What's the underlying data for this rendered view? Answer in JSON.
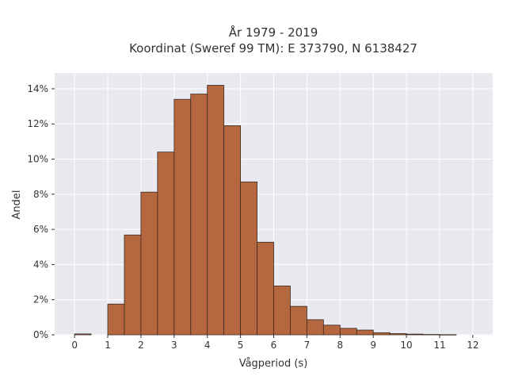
{
  "chart_data": {
    "type": "bar",
    "title_line1": "År 1979 - 2019",
    "title_line2": "Koordinat (Sweref 99 TM): E 373790, N 6138427",
    "xlabel": "Vågperiod (s)",
    "ylabel": "Andel",
    "xlim": [
      -0.6,
      12.6
    ],
    "ylim": [
      0,
      0.149
    ],
    "x_ticks": [
      0,
      1,
      2,
      3,
      4,
      5,
      6,
      7,
      8,
      9,
      10,
      11,
      12
    ],
    "y_ticks": [
      0,
      0.02,
      0.04,
      0.06,
      0.08,
      0.1,
      0.12,
      0.14
    ],
    "y_tick_labels": [
      "0%",
      "2%",
      "4%",
      "6%",
      "8%",
      "10%",
      "12%",
      "14%"
    ],
    "grid": true,
    "bar_color": "#b5683f",
    "bar_edge_color": "#3a2a20",
    "plot_background": "#e9e9f0",
    "bins": [
      {
        "x0": 0.0,
        "x1": 0.5,
        "value": 0.0005
      },
      {
        "x0": 1.0,
        "x1": 1.5,
        "value": 0.0175
      },
      {
        "x0": 1.5,
        "x1": 2.0,
        "value": 0.0568
      },
      {
        "x0": 2.0,
        "x1": 2.5,
        "value": 0.0812
      },
      {
        "x0": 2.5,
        "x1": 3.0,
        "value": 0.104
      },
      {
        "x0": 3.0,
        "x1": 3.5,
        "value": 0.134
      },
      {
        "x0": 3.5,
        "x1": 4.0,
        "value": 0.137
      },
      {
        "x0": 4.0,
        "x1": 4.5,
        "value": 0.142
      },
      {
        "x0": 4.5,
        "x1": 5.0,
        "value": 0.119
      },
      {
        "x0": 5.0,
        "x1": 5.5,
        "value": 0.087
      },
      {
        "x0": 5.5,
        "x1": 6.0,
        "value": 0.0527
      },
      {
        "x0": 6.0,
        "x1": 6.5,
        "value": 0.0278
      },
      {
        "x0": 6.5,
        "x1": 7.0,
        "value": 0.0162
      },
      {
        "x0": 7.0,
        "x1": 7.5,
        "value": 0.0086
      },
      {
        "x0": 7.5,
        "x1": 8.0,
        "value": 0.0055
      },
      {
        "x0": 8.0,
        "x1": 8.5,
        "value": 0.0037
      },
      {
        "x0": 8.5,
        "x1": 9.0,
        "value": 0.0027
      },
      {
        "x0": 9.0,
        "x1": 9.5,
        "value": 0.0012
      },
      {
        "x0": 9.5,
        "x1": 10.0,
        "value": 0.0007
      },
      {
        "x0": 10.0,
        "x1": 10.5,
        "value": 0.0004
      },
      {
        "x0": 10.5,
        "x1": 11.0,
        "value": 0.0002
      },
      {
        "x0": 11.0,
        "x1": 11.5,
        "value": 0.0001
      }
    ]
  }
}
